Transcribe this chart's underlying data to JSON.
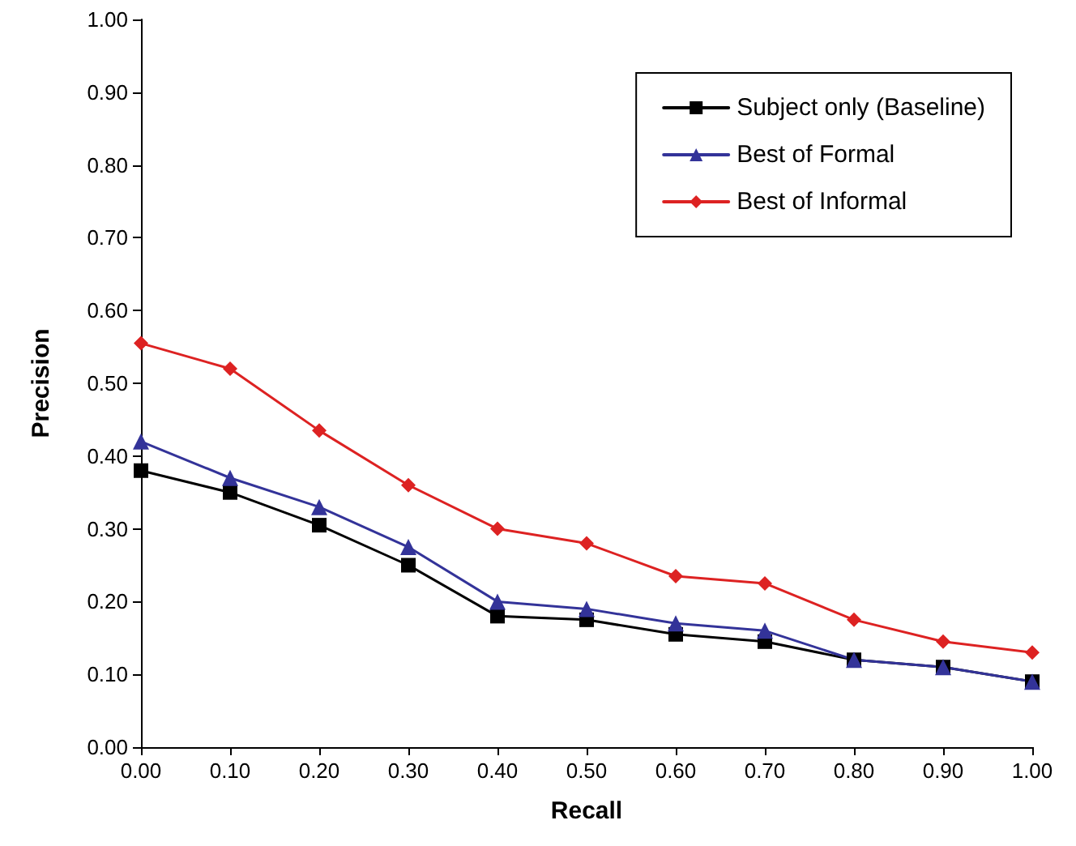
{
  "chart_data": {
    "type": "line",
    "xlabel": "Recall",
    "ylabel": "Precision",
    "x": [
      0,
      0.1,
      0.2,
      0.3,
      0.4,
      0.5,
      0.6,
      0.7,
      0.8,
      0.9,
      1.0
    ],
    "series": [
      {
        "name": "Subject only (Baseline)",
        "color": "#000000",
        "marker": "square",
        "values": [
          0.38,
          0.35,
          0.305,
          0.25,
          0.18,
          0.175,
          0.155,
          0.145,
          0.12,
          0.11,
          0.09
        ]
      },
      {
        "name": "Best of Formal",
        "color": "#333399",
        "marker": "triangle",
        "values": [
          0.42,
          0.37,
          0.33,
          0.275,
          0.2,
          0.19,
          0.17,
          0.16,
          0.12,
          0.11,
          0.09
        ]
      },
      {
        "name": "Best of Informal",
        "color": "#dd2222",
        "marker": "diamond",
        "values": [
          0.555,
          0.52,
          0.435,
          0.36,
          0.3,
          0.28,
          0.235,
          0.225,
          0.175,
          0.145,
          0.13
        ]
      }
    ],
    "xlim": [
      0,
      1
    ],
    "ylim": [
      0,
      1
    ],
    "xticks": [
      {
        "value": 0,
        "label": "0.00"
      },
      {
        "value": 0.1,
        "label": "0.10"
      },
      {
        "value": 0.2,
        "label": "0.20"
      },
      {
        "value": 0.3,
        "label": "0.30"
      },
      {
        "value": 0.4,
        "label": "0.40"
      },
      {
        "value": 0.5,
        "label": "0.50"
      },
      {
        "value": 0.6,
        "label": "0.60"
      },
      {
        "value": 0.7,
        "label": "0.70"
      },
      {
        "value": 0.8,
        "label": "0.80"
      },
      {
        "value": 0.9,
        "label": "0.90"
      },
      {
        "value": 1,
        "label": "1.00"
      }
    ],
    "yticks": [
      {
        "value": 0,
        "label": "0.00"
      },
      {
        "value": 0.1,
        "label": "0.10"
      },
      {
        "value": 0.2,
        "label": "0.20"
      },
      {
        "value": 0.3,
        "label": "0.30"
      },
      {
        "value": 0.4,
        "label": "0.40"
      },
      {
        "value": 0.5,
        "label": "0.50"
      },
      {
        "value": 0.6,
        "label": "0.60"
      },
      {
        "value": 0.7,
        "label": "0.70"
      },
      {
        "value": 0.8,
        "label": "0.80"
      },
      {
        "value": 0.9,
        "label": "0.90"
      },
      {
        "value": 1,
        "label": "1.00"
      }
    ],
    "grid": false,
    "legend": "top right",
    "line_style": "solid"
  }
}
